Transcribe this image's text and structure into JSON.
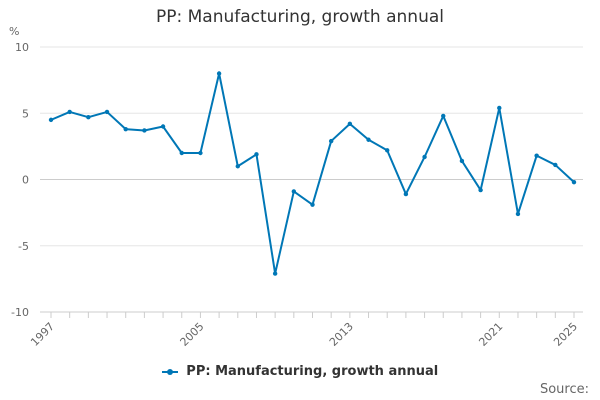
{
  "chart_data": {
    "type": "line",
    "title": "PP: Manufacturing, growth annual",
    "ylabel": "%",
    "xlabel": "",
    "ylim": [
      -10,
      10
    ],
    "xlim": [
      1997,
      2025
    ],
    "yticks": [
      10,
      5,
      0,
      -5,
      -10
    ],
    "xtick_labels": [
      1997,
      2005,
      2013,
      2021,
      2025
    ],
    "grid": true,
    "legend_position": "bottom",
    "series": [
      {
        "name": "PP: Manufacturing, growth annual",
        "color": "#0077b6",
        "x": [
          1997,
          1998,
          1999,
          2000,
          2001,
          2002,
          2003,
          2004,
          2005,
          2006,
          2007,
          2008,
          2009,
          2010,
          2011,
          2012,
          2013,
          2014,
          2015,
          2016,
          2017,
          2018,
          2019,
          2020,
          2021,
          2022,
          2023,
          2024,
          2025
        ],
        "values": [
          4.5,
          5.1,
          4.7,
          5.1,
          3.8,
          3.7,
          4.0,
          2.0,
          2.0,
          8.0,
          1.0,
          1.9,
          -7.1,
          -0.9,
          -1.9,
          2.9,
          4.2,
          3.0,
          2.2,
          -1.1,
          1.7,
          4.8,
          1.4,
          -0.8,
          5.4,
          -2.6,
          1.8,
          1.1,
          -0.2
        ]
      }
    ]
  },
  "legend": {
    "label": "PP: Manufacturing, growth annual"
  },
  "footer": {
    "source_label": "Source:"
  }
}
